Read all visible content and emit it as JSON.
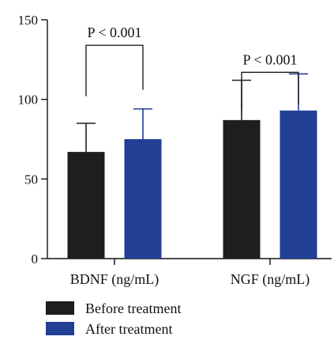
{
  "chart_data": {
    "type": "bar",
    "categories": [
      "BDNF (ng/mL)",
      "NGF (ng/mL)"
    ],
    "series": [
      {
        "name": "Before treatment",
        "values": [
          67,
          87
        ],
        "errors": [
          18,
          25
        ],
        "color": "#1f1d1e"
      },
      {
        "name": "After treatment",
        "values": [
          75,
          93
        ],
        "errors": [
          19,
          23
        ],
        "color": "#203f95"
      }
    ],
    "ylim": [
      0,
      150
    ],
    "yticks": [
      0,
      50,
      100,
      150
    ],
    "annotations": [
      {
        "category_index": 0,
        "text": "P < 0.001"
      },
      {
        "category_index": 1,
        "text": "P < 0.001"
      }
    ],
    "legend_position": "bottom-left",
    "grid": false,
    "title": "",
    "xlabel": "",
    "ylabel": ""
  }
}
